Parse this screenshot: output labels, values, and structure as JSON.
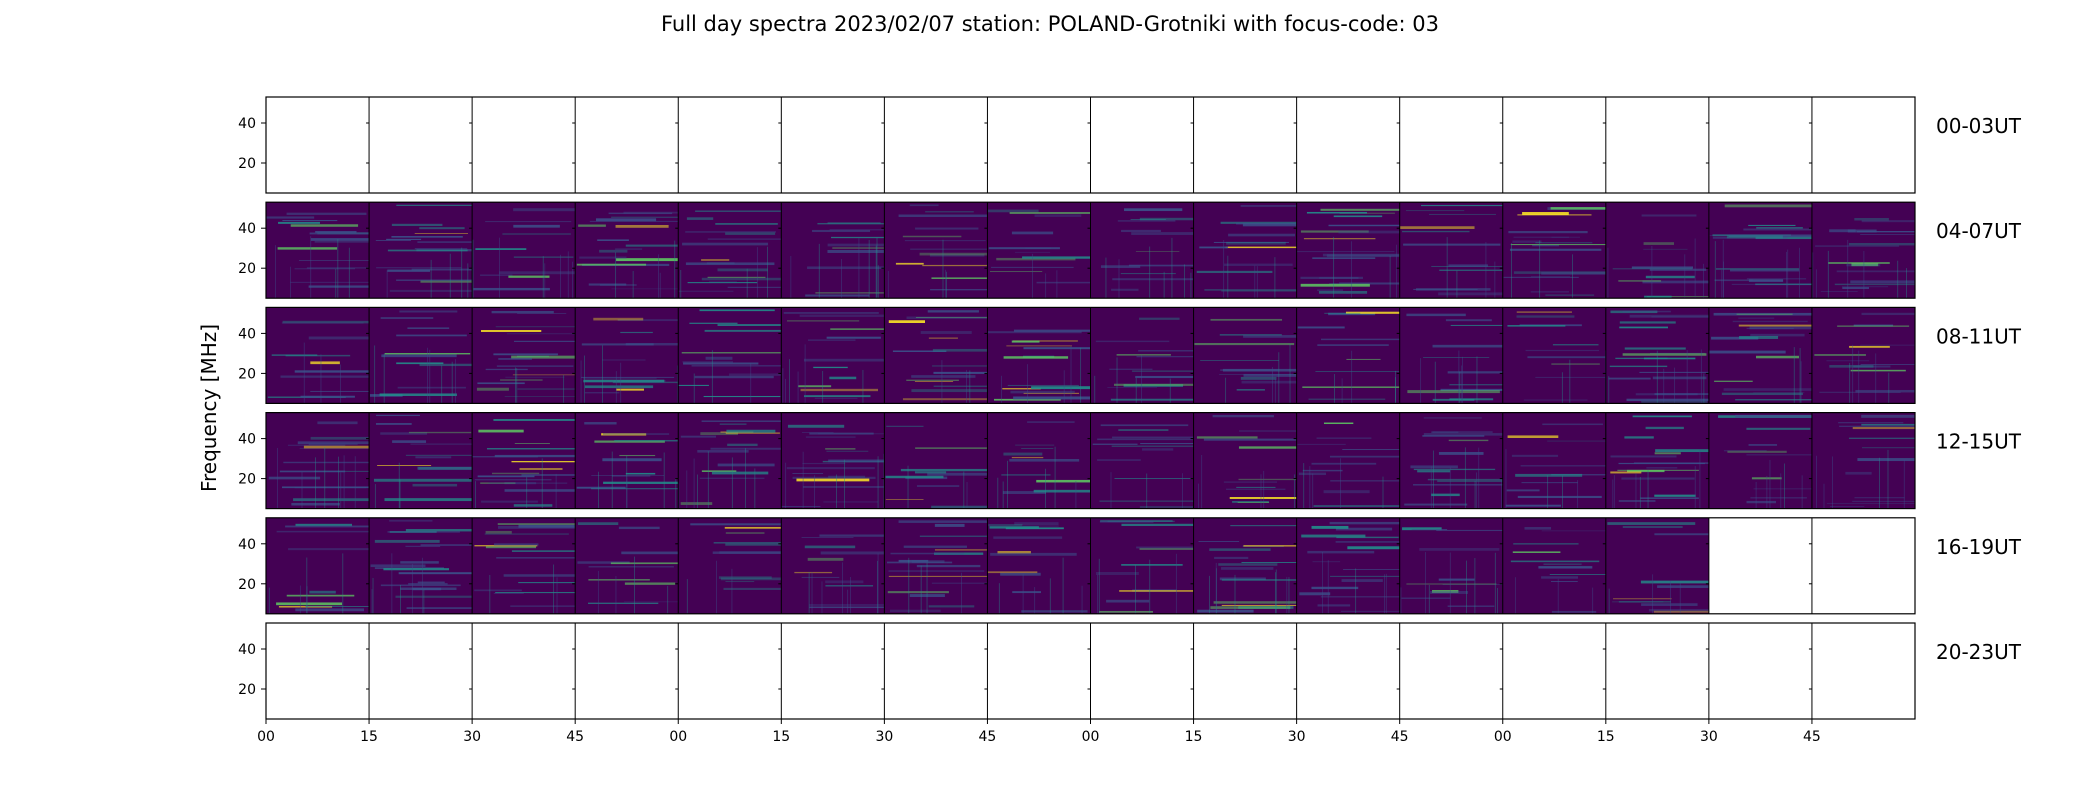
{
  "chart_data": {
    "type": "heatmap",
    "title": "Full day spectra 2023/02/07 station: POLAND-Grotniki with focus-code: 03",
    "ylabel": "Frequency [MHz]",
    "xlabel": "",
    "ylim": [
      5,
      53
    ],
    "yticks": [
      40,
      20
    ],
    "xticks": [
      "00",
      "15",
      "30",
      "45",
      "00",
      "15",
      "30",
      "45",
      "00",
      "15",
      "30",
      "45",
      "00",
      "15",
      "30",
      "45"
    ],
    "colormap": [
      "#440154",
      "#3b528b",
      "#21918c",
      "#5ec962",
      "#fde725"
    ],
    "panels_per_row": 16,
    "rows": [
      {
        "label": "00-03UT",
        "available": [
          0,
          0,
          0,
          0,
          0,
          0,
          0,
          0,
          0,
          0,
          0,
          0,
          0,
          0,
          0,
          0
        ]
      },
      {
        "label": "04-07UT",
        "available": [
          1,
          1,
          1,
          1,
          1,
          1,
          1,
          1,
          1,
          1,
          1,
          1,
          1,
          1,
          1,
          1
        ]
      },
      {
        "label": "08-11UT",
        "available": [
          1,
          1,
          1,
          1,
          1,
          1,
          1,
          1,
          1,
          1,
          1,
          1,
          1,
          1,
          1,
          1
        ]
      },
      {
        "label": "12-15UT",
        "available": [
          1,
          1,
          1,
          1,
          1,
          1,
          1,
          1,
          1,
          1,
          1,
          1,
          1,
          1,
          1,
          1
        ]
      },
      {
        "label": "16-19UT",
        "available": [
          1,
          1,
          1,
          1,
          1,
          1,
          1,
          1,
          1,
          1,
          1,
          1,
          1,
          1,
          0,
          0
        ]
      },
      {
        "label": "20-23UT",
        "available": [
          0,
          0,
          0,
          0,
          0,
          0,
          0,
          0,
          0,
          0,
          0,
          0,
          0,
          0,
          0,
          0
        ]
      }
    ]
  }
}
